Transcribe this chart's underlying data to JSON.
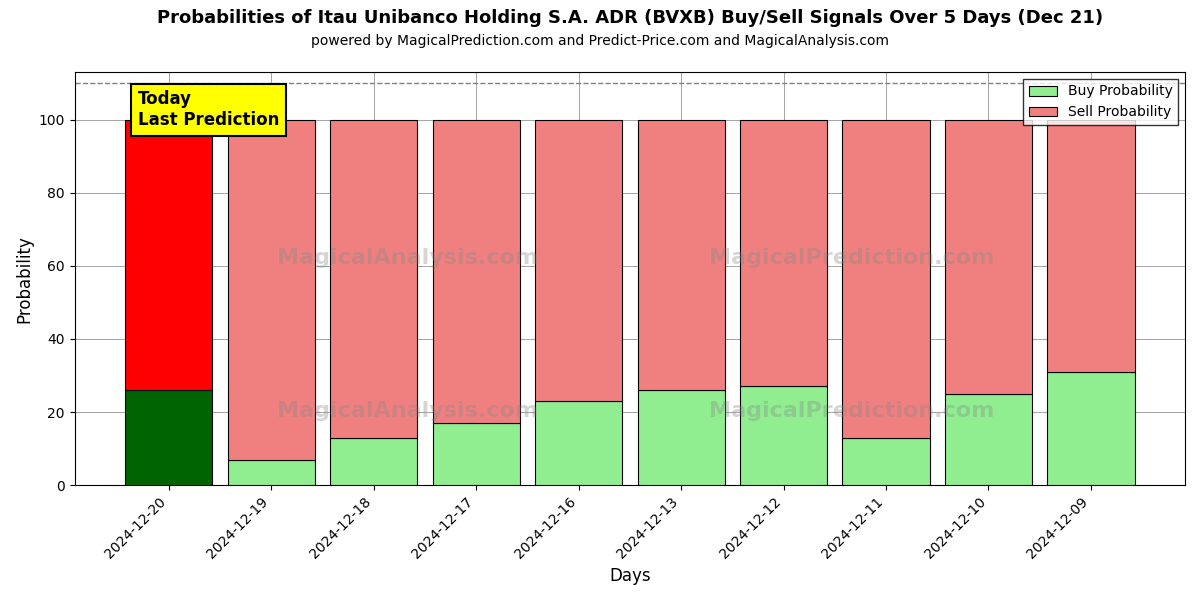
{
  "title": "Probabilities of Itau Unibanco Holding S.A. ADR (BVXB) Buy/Sell Signals Over 5 Days (Dec 21)",
  "subtitle": "powered by MagicalPrediction.com and Predict-Price.com and MagicalAnalysis.com",
  "xlabel": "Days",
  "ylabel": "Probability",
  "categories": [
    "2024-12-20",
    "2024-12-19",
    "2024-12-18",
    "2024-12-17",
    "2024-12-16",
    "2024-12-13",
    "2024-12-12",
    "2024-12-11",
    "2024-12-10",
    "2024-12-09"
  ],
  "buy_values": [
    26,
    7,
    13,
    17,
    23,
    26,
    27,
    13,
    25,
    31
  ],
  "sell_values": [
    74,
    93,
    87,
    83,
    77,
    74,
    73,
    87,
    75,
    69
  ],
  "today_buy_color": "#006400",
  "today_sell_color": "#ff0000",
  "other_buy_color": "#90EE90",
  "other_sell_color": "#F08080",
  "today_label_bg": "#ffff00",
  "today_label_text": "Today\nLast Prediction",
  "legend_buy_label": "Buy Probability",
  "legend_sell_label": "Sell Probability",
  "ylim": [
    0,
    113
  ],
  "yticks": [
    0,
    20,
    40,
    60,
    80,
    100
  ],
  "dashed_line_y": 110,
  "bar_edge_color": "#000000",
  "bar_linewidth": 0.8,
  "bar_width": 0.85,
  "title_fontsize": 13,
  "subtitle_fontsize": 10,
  "axis_label_fontsize": 12,
  "tick_fontsize": 10,
  "legend_fontsize": 10
}
